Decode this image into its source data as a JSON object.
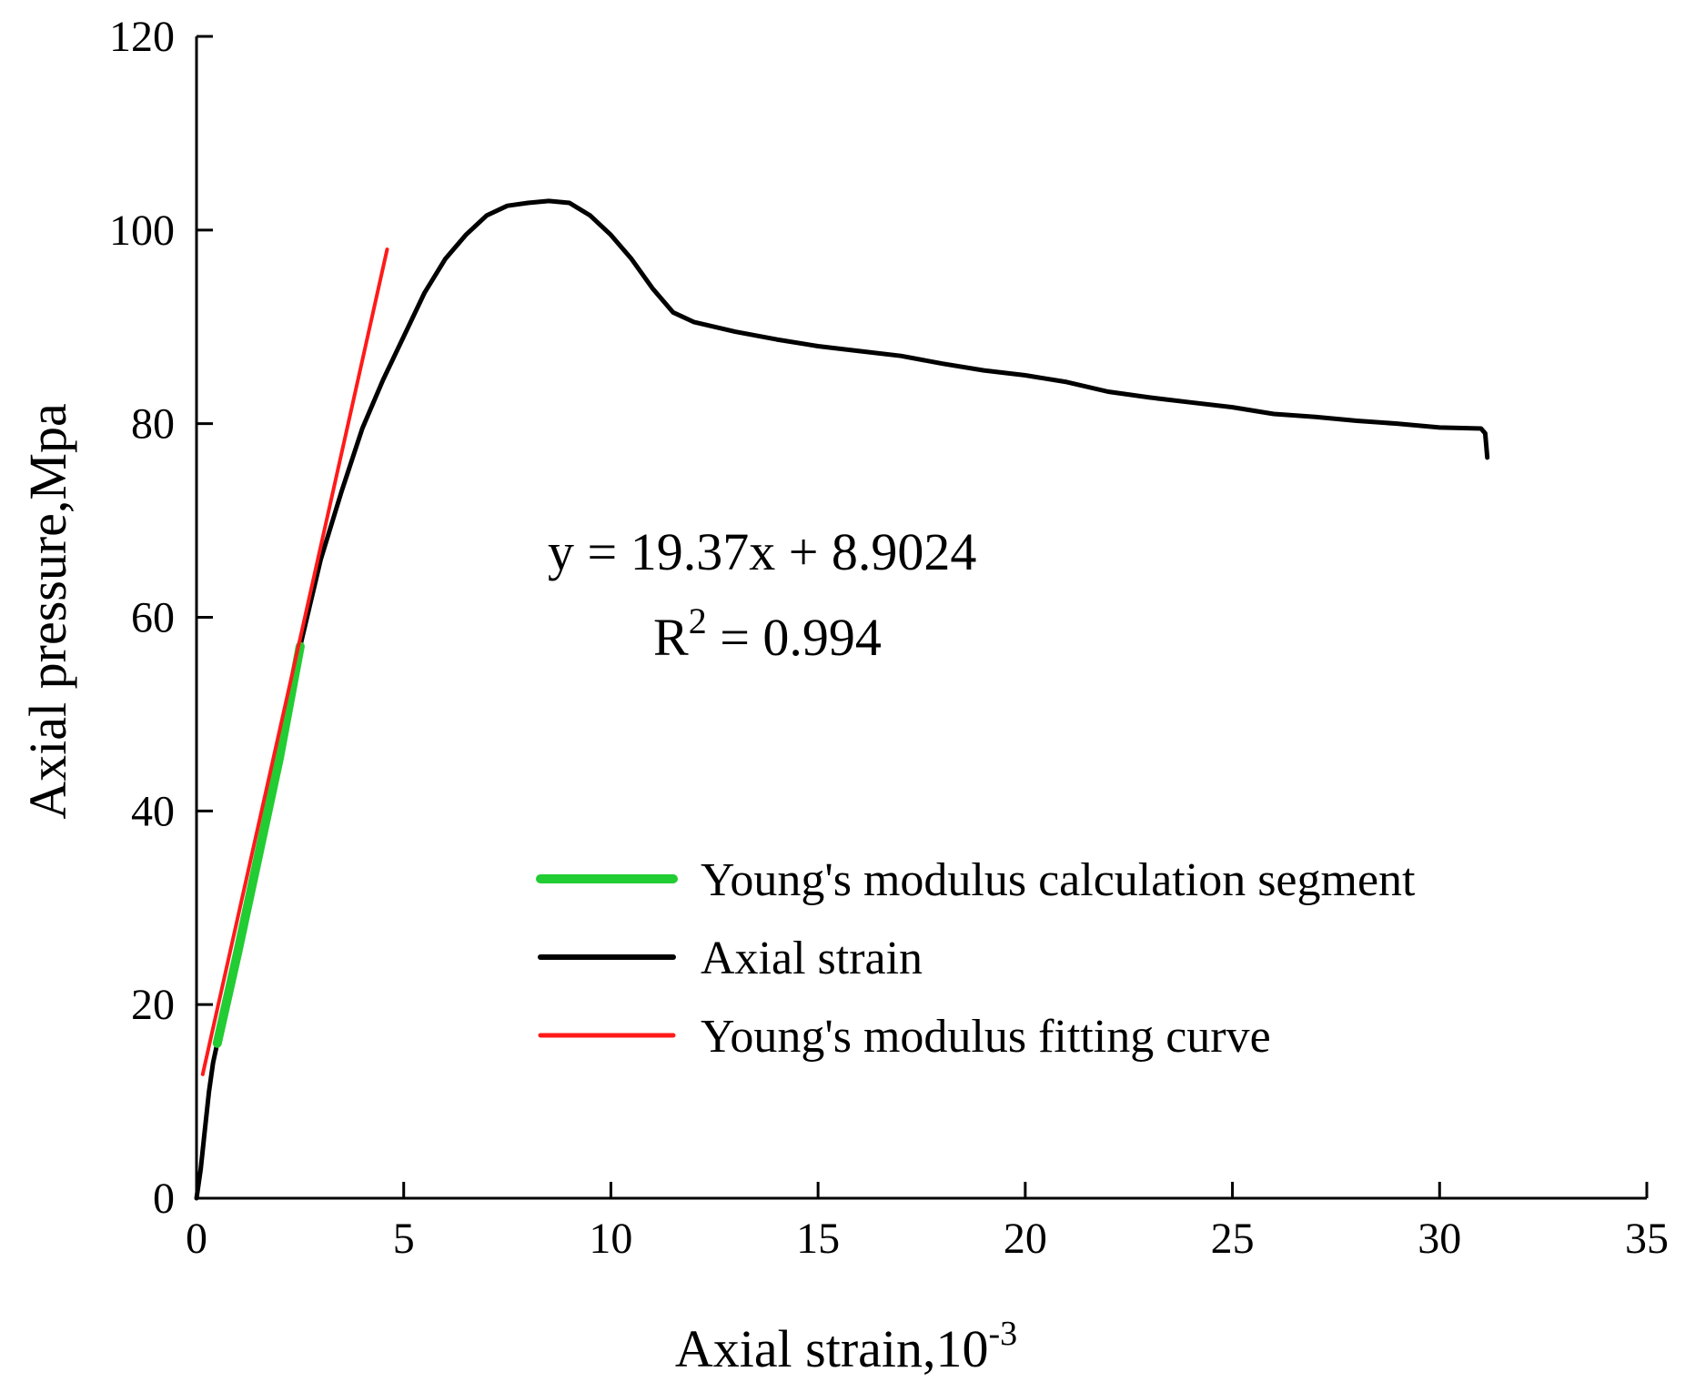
{
  "chart_data": {
    "type": "line",
    "xlabel": "Axial strain,10",
    "xlabel_superscript": "-3",
    "ylabel": "Axial pressure,Mpa",
    "xlim": [
      0,
      35
    ],
    "ylim": [
      0,
      120
    ],
    "x_ticks": [
      0,
      5,
      10,
      15,
      20,
      25,
      30,
      35
    ],
    "y_ticks": [
      0,
      20,
      40,
      60,
      80,
      100,
      120
    ],
    "grid": false,
    "legend_position": "center-right",
    "annotation": {
      "equation": "y = 19.37x + 8.9024",
      "r2_prefix": "R",
      "r2_superscript": "2",
      "r2_value": " = 0.994"
    },
    "series": [
      {
        "name": "Young's modulus calculation segment",
        "color": "#22cc33",
        "x": [
          0.5,
          1.0,
          1.5,
          2.0,
          2.5
        ],
        "y": [
          16,
          25.5,
          35.5,
          45.5,
          57
        ]
      },
      {
        "name": "Axial strain",
        "color": "#000000",
        "x": [
          0,
          0.1,
          0.2,
          0.3,
          0.4,
          0.5,
          0.8,
          1.2,
          1.6,
          2.0,
          2.5,
          3.0,
          3.5,
          4.0,
          4.5,
          5.0,
          5.5,
          6.0,
          6.5,
          7.0,
          7.5,
          8.0,
          8.5,
          9.0,
          9.5,
          10.0,
          10.5,
          11.0,
          11.5,
          12.0,
          13.0,
          14.0,
          15.0,
          16.0,
          17.0,
          18.0,
          19.0,
          20.0,
          21.0,
          22.0,
          23.0,
          24.0,
          25.0,
          26.0,
          27.0,
          28.0,
          29.0,
          30.0,
          31.0,
          31.1,
          31.15
        ],
        "y": [
          0,
          3,
          7,
          11,
          14,
          16,
          22,
          30,
          38,
          46,
          57,
          66,
          73,
          79.5,
          84.5,
          89,
          93.5,
          97,
          99.5,
          101.5,
          102.5,
          102.8,
          103,
          102.8,
          101.5,
          99.5,
          97,
          94,
          91.5,
          90.5,
          89.5,
          88.7,
          88,
          87.5,
          87,
          86.2,
          85.5,
          85,
          84.3,
          83.3,
          82.7,
          82.2,
          81.7,
          81,
          80.7,
          80.3,
          80,
          79.6,
          79.5,
          79,
          76.5
        ]
      },
      {
        "name": "Young's modulus fitting curve",
        "color": "#ff1a1a",
        "x": [
          0.15,
          4.6
        ],
        "y": [
          12.8,
          98
        ]
      }
    ]
  }
}
